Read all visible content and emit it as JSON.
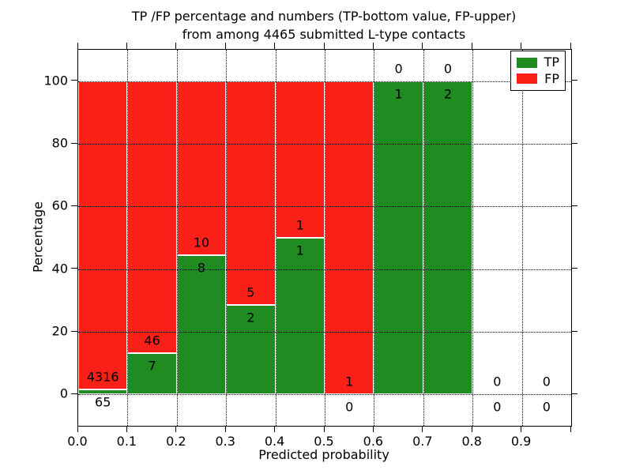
{
  "title": {
    "line1": "TP /FP percentage and numbers (TP-bottom value, FP-upper)",
    "line2": "from among 4465 submitted L-type contacts"
  },
  "axes": {
    "xlabel": "Predicted probability",
    "ylabel": "Percentage",
    "x_tick_labels": [
      "0.0",
      "0.1",
      "0.2",
      "0.3",
      "0.4",
      "0.5",
      "0.6",
      "0.7",
      "0.8",
      "0.9"
    ],
    "y_tick_labels": [
      "0",
      "20",
      "40",
      "60",
      "80",
      "100"
    ],
    "xlim": [
      0.0,
      1.0
    ],
    "ylim": [
      -10,
      110
    ],
    "grid_style": "dotted black, both directions, drawn over bars"
  },
  "legend": {
    "position": "upper right",
    "items": [
      {
        "label": "TP",
        "color": "#208b20"
      },
      {
        "label": "FP",
        "color": "#fa2018"
      }
    ]
  },
  "chart_data": {
    "type": "bar",
    "stacked": true,
    "normalized_to_percent": true,
    "title": "TP /FP percentage and numbers (TP-bottom value, FP-upper) from among 4465 submitted L-type contacts",
    "xlabel": "Predicted probability",
    "ylabel": "Percentage",
    "xlim": [
      0.0,
      1.0
    ],
    "ylim": [
      -10,
      110
    ],
    "bin_width": 0.1,
    "bin_starts": [
      0.0,
      0.1,
      0.2,
      0.3,
      0.4,
      0.5,
      0.6,
      0.7,
      0.8,
      0.9
    ],
    "series": [
      {
        "name": "TP",
        "color": "#208b20",
        "counts": [
          65,
          7,
          8,
          2,
          1,
          0,
          1,
          2,
          0,
          0
        ]
      },
      {
        "name": "FP",
        "color": "#fa2018",
        "counts": [
          4316,
          46,
          10,
          5,
          1,
          1,
          0,
          0,
          0,
          0
        ]
      }
    ],
    "tp_percent_per_bin": [
      1.48,
      13.21,
      44.44,
      28.57,
      50.0,
      0.0,
      100.0,
      100.0,
      null,
      null
    ],
    "total_contacts": 4465
  },
  "colors": {
    "tp": "#208b20",
    "fp": "#fa2018",
    "grid": "#000000",
    "background": "#ffffff",
    "text": "#000000"
  }
}
